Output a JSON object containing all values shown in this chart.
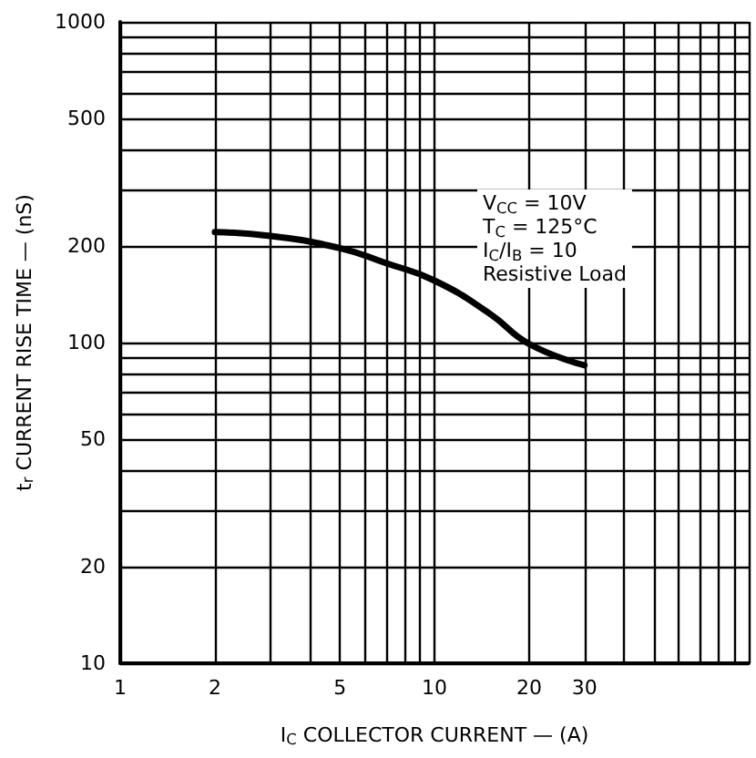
{
  "chart_data": {
    "type": "line",
    "xlabel": "I$_{C}$ COLLECTOR CURRENT — (A)",
    "ylabel": "t$_{r}$ CURRENT RISE TIME — (nS)",
    "log": "xy",
    "grid": true,
    "marker": "none",
    "line_style": "solid",
    "x": [
      2,
      3,
      5,
      7,
      10,
      15,
      20,
      30
    ],
    "series": [
      {
        "color": "#000000",
        "values": [
          221,
          215,
          197,
          177,
          156,
          123,
          99,
          85
        ]
      }
    ],
    "xlim": [
      1,
      100
    ],
    "xticks": [
      1,
      2,
      {
        "value": 3,
        "label": null
      },
      {
        "value": 4,
        "label": null
      },
      5,
      {
        "value": 6,
        "label": null
      },
      {
        "value": 7,
        "label": null
      },
      {
        "value": 8,
        "label": null
      },
      {
        "value": 9,
        "label": null
      },
      10,
      20,
      30,
      {
        "value": 40,
        "label": null
      },
      {
        "value": 50,
        "label": null
      },
      {
        "value": 60,
        "label": null
      },
      {
        "value": 70,
        "label": null
      },
      {
        "value": 80,
        "label": null
      },
      {
        "value": 90,
        "label": null
      },
      {
        "value": 100,
        "label": null
      }
    ],
    "ylim": [
      10,
      1000
    ],
    "yticks": [
      10,
      20,
      {
        "value": 30,
        "label": null
      },
      {
        "value": 40,
        "label": null
      },
      50,
      {
        "value": 60,
        "label": null
      },
      {
        "value": 70,
        "label": null
      },
      {
        "value": 80,
        "label": null
      },
      {
        "value": 90,
        "label": null
      },
      100,
      200,
      {
        "value": 300,
        "label": null
      },
      {
        "value": 400,
        "label": null
      },
      500,
      {
        "value": 600,
        "label": null
      },
      {
        "value": 700,
        "label": null
      },
      {
        "value": 800,
        "label": null
      },
      {
        "value": 900,
        "label": null
      },
      1000
    ],
    "annotations": [
      "V$_{CC}$ = 10V",
      "T$_{C}$ = 125°C",
      "I$_{C}$/I$_{B}$ = 10",
      "Resistive Load"
    ]
  }
}
